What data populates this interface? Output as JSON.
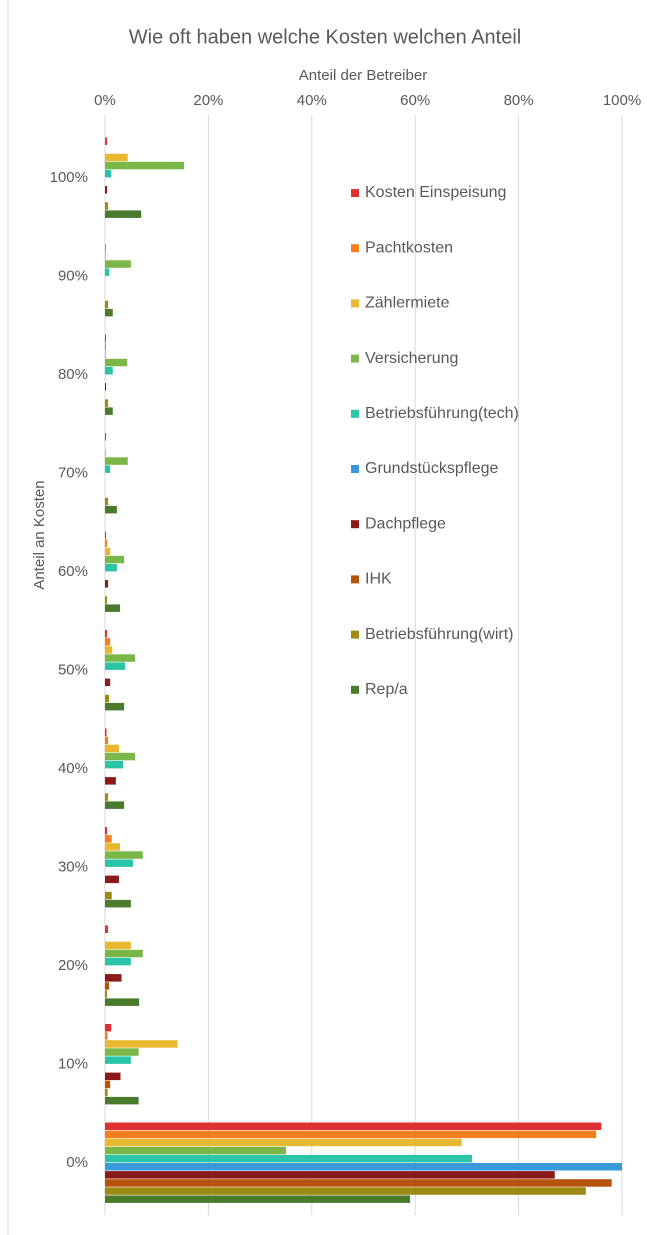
{
  "chart_data": {
    "type": "hbar",
    "title": "Wie oft haben welche Kosten welchen Anteil",
    "x_label": "Anteil der Betreiber",
    "y_label": "Anteil an Kosten",
    "categories": [
      "0%",
      "10%",
      "20%",
      "30%",
      "40%",
      "50%",
      "60%",
      "70%",
      "80%",
      "90%",
      "100%"
    ],
    "xlim": [
      0,
      100
    ],
    "xticks": [
      {
        "value": 0,
        "label": "0%"
      },
      {
        "value": 20,
        "label": "20%"
      },
      {
        "value": 40,
        "label": "40%"
      },
      {
        "value": 60,
        "label": "60%"
      },
      {
        "value": 80,
        "label": "80%"
      },
      {
        "value": 100,
        "label": "100%"
      }
    ],
    "grid": true,
    "series": [
      {
        "name": "Kosten Einspeisung",
        "color": "#e03030",
        "values": [
          96,
          1.2,
          0.6,
          0.4,
          0.3,
          0.4,
          0.2,
          0.2,
          0.2,
          0,
          0.4
        ]
      },
      {
        "name": "Pachtkosten",
        "color": "#f57f20",
        "values": [
          95,
          0.5,
          0,
          1.3,
          0.6,
          1,
          0.4,
          0,
          0.2,
          0.2,
          0
        ]
      },
      {
        "name": "Zählermiete",
        "color": "#e8b830",
        "values": [
          69,
          14,
          5,
          2.9,
          2.7,
          1.4,
          1,
          0.2,
          0.2,
          0.2,
          4.4
        ]
      },
      {
        "name": "Versicherung",
        "color": "#7ab648",
        "values": [
          35,
          6.5,
          7.3,
          7.3,
          5.8,
          5.8,
          3.7,
          4.4,
          4.3,
          5,
          15.3
        ]
      },
      {
        "name": "Betriebsführung(tech)",
        "color": "#2cc4a8",
        "values": [
          71,
          5,
          5,
          5.4,
          3.5,
          3.9,
          2.3,
          1,
          1.5,
          0.8,
          1.2
        ]
      },
      {
        "name": "Grundstückspflege",
        "color": "#3a9ad9",
        "values": [
          100,
          0,
          0,
          0,
          0,
          0,
          0,
          0,
          0,
          0,
          0
        ]
      },
      {
        "name": "Dachpflege",
        "color": "#8b1a1a",
        "values": [
          87,
          3,
          3.2,
          2.7,
          2.1,
          1,
          0.6,
          0,
          0.2,
          0,
          0.4
        ]
      },
      {
        "name": "IHK",
        "color": "#b5530c",
        "values": [
          98,
          1,
          0.8,
          0,
          0,
          0,
          0,
          0,
          0,
          0,
          0
        ]
      },
      {
        "name": "Betriebsführung(wirt)",
        "color": "#9c8a14",
        "values": [
          93,
          0.5,
          0.4,
          1.3,
          0.6,
          0.8,
          0.4,
          0.6,
          0.6,
          0.6,
          0.6
        ]
      },
      {
        "name": "Rep/a",
        "color": "#4a7a2c",
        "values": [
          59,
          6.5,
          6.6,
          5,
          3.7,
          3.7,
          2.9,
          2.3,
          1.5,
          1.5,
          7
        ]
      }
    ]
  }
}
